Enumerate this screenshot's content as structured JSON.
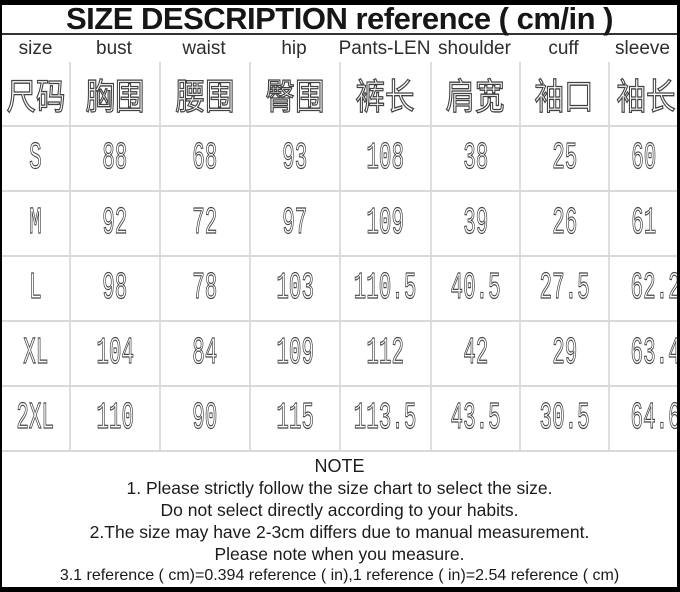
{
  "colors": {
    "frame_border": "#000000",
    "title_rule": "#333333",
    "gridline": "#d9d9d9",
    "note_text": "#1b1b1b",
    "value_text": "#4a4a4a"
  },
  "title": "SIZE DESCRIPTION reference ( cm/in )",
  "size_chart": {
    "columns_en": [
      "size",
      "bust",
      "waist",
      "hip",
      "Pants-LEN",
      "shoulder",
      "cuff",
      "sleeve"
    ],
    "columns_cn": [
      "尺码",
      "胸围",
      "腰围",
      "臀围",
      "裤长",
      "肩宽",
      "袖口",
      "袖长"
    ],
    "rows": [
      {
        "size": "S",
        "bust": "88",
        "waist": "68",
        "hip": "93",
        "pants_len": "108",
        "shoulder": "38",
        "cuff": "25",
        "sleeve": "60"
      },
      {
        "size": "M",
        "bust": "92",
        "waist": "72",
        "hip": "97",
        "pants_len": "109",
        "shoulder": "39",
        "cuff": "26",
        "sleeve": "61"
      },
      {
        "size": "L",
        "bust": "98",
        "waist": "78",
        "hip": "103",
        "pants_len": "110.5",
        "shoulder": "40.5",
        "cuff": "27.5",
        "sleeve": "62.2"
      },
      {
        "size": "XL",
        "bust": "104",
        "waist": "84",
        "hip": "109",
        "pants_len": "112",
        "shoulder": "42",
        "cuff": "29",
        "sleeve": "63.4"
      },
      {
        "size": "2XL",
        "bust": "110",
        "waist": "90",
        "hip": "115",
        "pants_len": "113.5",
        "shoulder": "43.5",
        "cuff": "30.5",
        "sleeve": "64.6"
      }
    ]
  },
  "note": {
    "heading": "NOTE",
    "lines": [
      "1. Please strictly follow the size chart to select the size.",
      "Do not select directly according to your habits.",
      "2.The size may have 2-3cm differs due to manual measurement.",
      "Please note when you measure.",
      "3.1 reference ( cm)=0.394 reference ( in),1 reference ( in)=2.54 reference ( cm)"
    ]
  }
}
